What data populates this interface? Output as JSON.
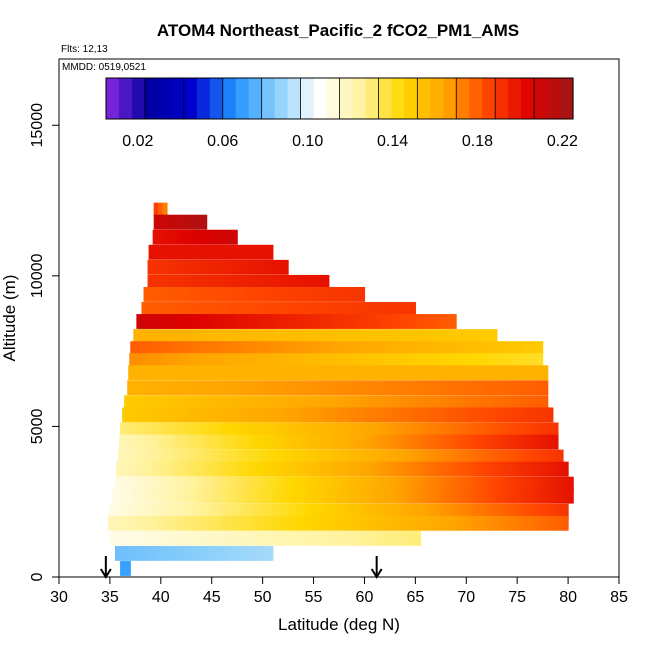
{
  "chart_data": {
    "type": "heatmap",
    "title": "ATOM4 Northeast_Pacific_2 fCO2_PM1_AMS",
    "subtitle_flights": "Flts: 12,13",
    "subtitle_dates": "MMDD: 0519,0521",
    "xlabel": "Latitude (deg N)",
    "ylabel": "Altitude (m)",
    "xlim": [
      30,
      85
    ],
    "ylim": [
      0,
      17200
    ],
    "x_ticks": [
      30,
      35,
      40,
      45,
      50,
      55,
      60,
      65,
      70,
      75,
      80,
      85
    ],
    "x_tick_labels": [
      "30",
      "35",
      "40",
      "45",
      "50",
      "55",
      "60",
      "65",
      "70",
      "75",
      "80",
      "85"
    ],
    "y_ticks": [
      0,
      5000,
      10000,
      15000
    ],
    "y_tick_labels": [
      "0",
      "5000",
      "10000",
      "15000"
    ],
    "colorbar": {
      "min": 0.005,
      "max": 0.225,
      "tick_values": [
        0.02,
        0.06,
        0.1,
        0.14,
        0.18,
        0.22
      ],
      "tick_labels": [
        "0.02",
        "0.06",
        "0.10",
        "0.14",
        "0.18",
        "0.22"
      ],
      "colors": [
        "#8a2be2",
        "#0000a0",
        "#0000cd",
        "#1e90ff",
        "#87cefa",
        "#ffffff",
        "#fff3a0",
        "#ffd700",
        "#ffa500",
        "#ff4500",
        "#dd0000",
        "#a01818"
      ]
    },
    "arrows_latitude": [
      34.6,
      61.2
    ],
    "layers": [
      {
        "alt": 12200,
        "lat_start": 39.3,
        "lat_end": 40.6,
        "v_start": 0.19,
        "v_end": 0.17
      },
      {
        "alt": 11800,
        "lat_start": 39.3,
        "lat_end": 44.5,
        "v_start": 0.21,
        "v_end": 0.22
      },
      {
        "alt": 11300,
        "lat_start": 39.2,
        "lat_end": 47.5,
        "v_start": 0.2,
        "v_end": 0.21
      },
      {
        "alt": 10800,
        "lat_start": 38.8,
        "lat_end": 51.0,
        "v_start": 0.2,
        "v_end": 0.2
      },
      {
        "alt": 10300,
        "lat_start": 38.7,
        "lat_end": 52.5,
        "v_start": 0.19,
        "v_end": 0.2
      },
      {
        "alt": 9800,
        "lat_start": 38.7,
        "lat_end": 56.5,
        "v_start": 0.19,
        "v_end": 0.2
      },
      {
        "alt": 9400,
        "lat_start": 38.3,
        "lat_end": 60.0,
        "v_start": 0.18,
        "v_end": 0.19
      },
      {
        "alt": 8900,
        "lat_start": 38.1,
        "lat_end": 65.0,
        "v_start": 0.18,
        "v_end": 0.19
      },
      {
        "alt": 8500,
        "lat_start": 37.6,
        "lat_end": 69.0,
        "v_start": 0.21,
        "v_end": 0.18
      },
      {
        "alt": 8000,
        "lat_start": 37.3,
        "lat_end": 73.0,
        "v_start": 0.16,
        "v_end": 0.15
      },
      {
        "alt": 7600,
        "lat_start": 37.0,
        "lat_end": 77.5,
        "v_start": 0.18,
        "v_end": 0.15
      },
      {
        "alt": 7200,
        "lat_start": 36.9,
        "lat_end": 77.5,
        "v_start": 0.17,
        "v_end": 0.14
      },
      {
        "alt": 6800,
        "lat_start": 36.8,
        "lat_end": 78.0,
        "v_start": 0.16,
        "v_end": 0.16
      },
      {
        "alt": 6300,
        "lat_start": 36.7,
        "lat_end": 78.0,
        "v_start": 0.16,
        "v_end": 0.18
      },
      {
        "alt": 5800,
        "lat_start": 36.4,
        "lat_end": 78.0,
        "v_start": 0.15,
        "v_end": 0.18
      },
      {
        "alt": 5400,
        "lat_start": 36.2,
        "lat_end": 78.5,
        "v_start": 0.15,
        "v_end": 0.19
      },
      {
        "alt": 4900,
        "lat_start": 36.0,
        "lat_end": 79.0,
        "v_start": 0.13,
        "v_end": 0.19
      },
      {
        "alt": 4500,
        "lat_start": 35.9,
        "lat_end": 79.0,
        "v_start": 0.12,
        "v_end": 0.2
      },
      {
        "alt": 4000,
        "lat_start": 35.8,
        "lat_end": 79.5,
        "v_start": 0.12,
        "v_end": 0.19
      },
      {
        "alt": 3600,
        "lat_start": 35.6,
        "lat_end": 80.0,
        "v_start": 0.12,
        "v_end": 0.2
      },
      {
        "alt": 3100,
        "lat_start": 35.5,
        "lat_end": 80.5,
        "v_start": 0.11,
        "v_end": 0.2
      },
      {
        "alt": 2700,
        "lat_start": 35.2,
        "lat_end": 80.5,
        "v_start": 0.11,
        "v_end": 0.2
      },
      {
        "alt": 2200,
        "lat_start": 34.9,
        "lat_end": 80.0,
        "v_start": 0.11,
        "v_end": 0.19
      },
      {
        "alt": 1800,
        "lat_start": 34.8,
        "lat_end": 80.0,
        "v_start": 0.12,
        "v_end": 0.18
      },
      {
        "alt": 1300,
        "lat_start": 35.0,
        "lat_end": 65.5,
        "v_start": 0.11,
        "v_end": 0.13
      },
      {
        "alt": 800,
        "lat_start": 35.5,
        "lat_end": 51.0,
        "v_start": 0.08,
        "v_end": 0.09
      },
      {
        "alt": 300,
        "lat_start": 36.0,
        "lat_end": 37.0,
        "v_start": 0.07,
        "v_end": 0.07
      }
    ]
  }
}
